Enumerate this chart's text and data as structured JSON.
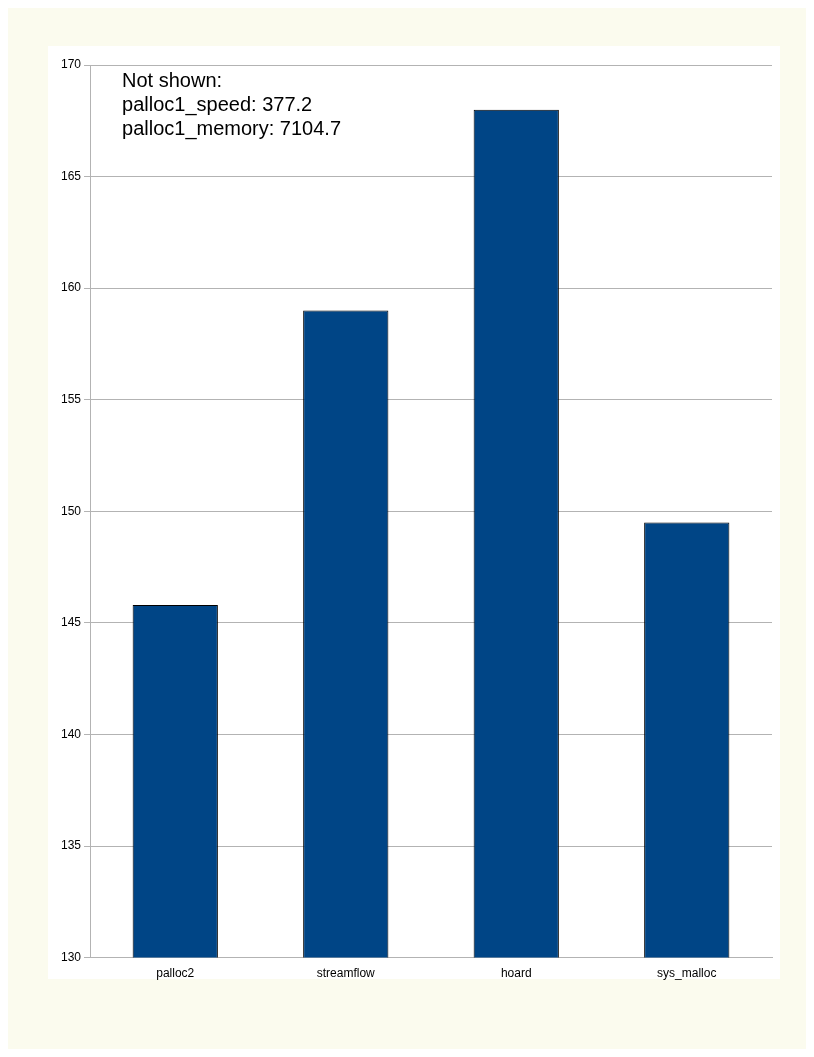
{
  "chart_data": {
    "type": "bar",
    "categories": [
      "palloc2",
      "streamflow",
      "hoard",
      "sys_malloc"
    ],
    "values": [
      145.8,
      159.0,
      168.0,
      149.5
    ],
    "color": "#004586",
    "ylim": [
      130,
      170
    ],
    "yticks": [
      130,
      135,
      140,
      145,
      150,
      155,
      160,
      165,
      170
    ],
    "grid": "y",
    "legend": false,
    "annotations": [
      "Not shown:\npalloc1_speed: 377.2\npalloc1_memory: 7104.7"
    ]
  }
}
